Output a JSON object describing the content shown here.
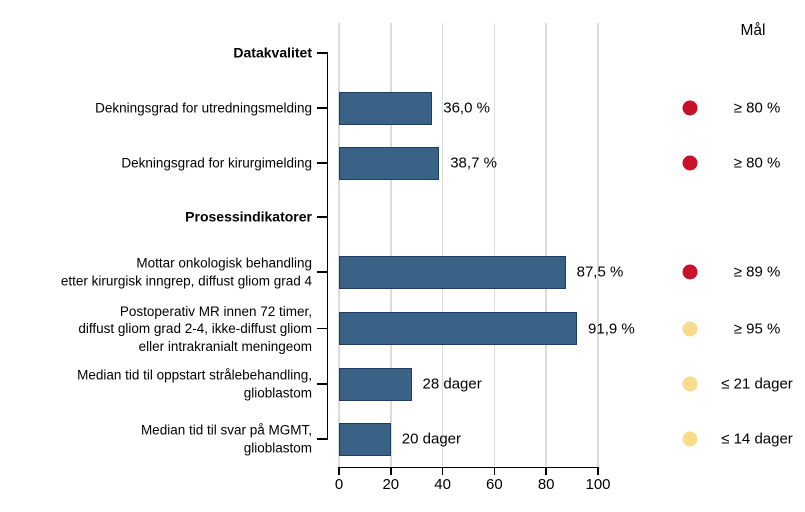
{
  "colors": {
    "bar_fill": "#3A6287",
    "bar_border": "#1F3C61",
    "target_red": "#C8112B",
    "target_yellow": "#F7DC8D",
    "gridline": "#DCDCDC",
    "axis": "#000000"
  },
  "chart_data": {
    "type": "bar",
    "orientation": "horizontal",
    "title": "",
    "xlabel": "",
    "ylabel": "",
    "grid": true,
    "legend_header": "Mål",
    "x_axis": {
      "range": [
        0,
        100
      ],
      "ticks": [
        0,
        20,
        40,
        60,
        80,
        100
      ]
    },
    "rows": [
      {
        "kind": "section",
        "label": "Datakvalitet"
      },
      {
        "kind": "bar",
        "label": "Dekningsgrad for utredningsmelding",
        "value": 36.0,
        "value_label": "36,0 %",
        "target": "≥ 80 %",
        "target_color": "red"
      },
      {
        "kind": "bar",
        "label": "Dekningsgrad for kirurgimelding",
        "value": 38.7,
        "value_label": "38,7 %",
        "target": "≥ 80 %",
        "target_color": "red"
      },
      {
        "kind": "section",
        "label": "Prosessindikatorer"
      },
      {
        "kind": "bar",
        "label": "Mottar onkologisk behandling\netter kirurgisk inngrep, diffust gliom grad 4",
        "value": 87.5,
        "value_label": "87,5 %",
        "target": "≥ 89 %",
        "target_color": "red"
      },
      {
        "kind": "bar",
        "label": "Postoperativ MR innen 72 timer,\ndiffust gliom grad 2-4, ikke-diffust gliom\neller intrakranialt meningeom",
        "value": 91.9,
        "value_label": "91,9 %",
        "target": "≥ 95 %",
        "target_color": "yellow"
      },
      {
        "kind": "bar",
        "label": "Median tid til oppstart strålebehandling,\nglioblastom",
        "value": 28,
        "value_label": "28 dager",
        "target": "≤ 21 dager",
        "target_color": "yellow"
      },
      {
        "kind": "bar",
        "label": "Median tid til svar på MGMT,\nglioblastom",
        "value": 20,
        "value_label": "20 dager",
        "target": "≤ 14 dager",
        "target_color": "yellow"
      }
    ]
  }
}
